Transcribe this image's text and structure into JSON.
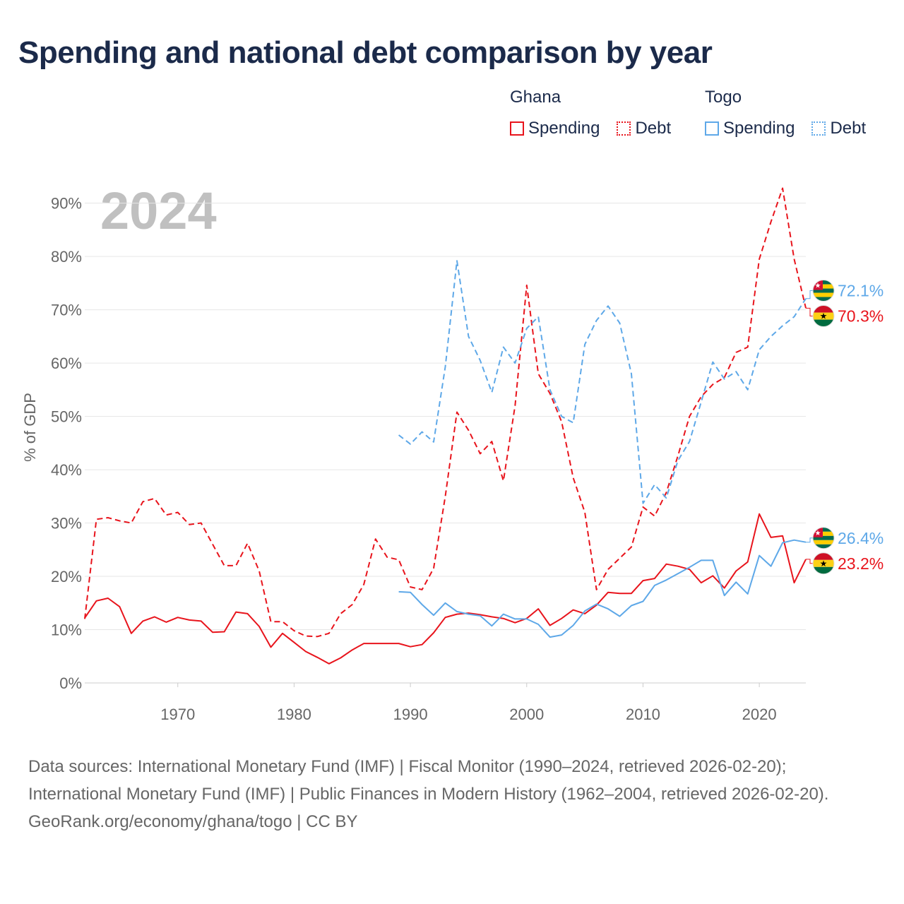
{
  "title": "Spending and national debt comparison by year",
  "legend": {
    "groups": [
      {
        "name": "Ghana",
        "items": [
          {
            "label": "Spending",
            "style": "solid",
            "color": "#e8141c"
          },
          {
            "label": "Debt",
            "style": "dotted",
            "color": "#e8141c"
          }
        ]
      },
      {
        "name": "Togo",
        "items": [
          {
            "label": "Spending",
            "style": "solid",
            "color": "#5ea8e8"
          },
          {
            "label": "Debt",
            "style": "dotted",
            "color": "#5ea8e8"
          }
        ]
      }
    ]
  },
  "colors": {
    "ghana": "#e8141c",
    "togo": "#5ea8e8",
    "title": "#1b2a4a",
    "year_watermark": "#c0c0c0"
  },
  "chart_data": {
    "type": "line",
    "year_label": "2024",
    "ylabel": "% of GDP",
    "xlim": [
      1962,
      2024
    ],
    "ylim": [
      0,
      93
    ],
    "x_ticks": [
      1970,
      1980,
      1990,
      2000,
      2010,
      2020
    ],
    "y_ticks": [
      {
        "value": 0,
        "label": "0%"
      },
      {
        "value": 10,
        "label": "10%"
      },
      {
        "value": 20,
        "label": "20%"
      },
      {
        "value": 30,
        "label": "30%"
      },
      {
        "value": 40,
        "label": "40%"
      },
      {
        "value": 50,
        "label": "50%"
      },
      {
        "value": 60,
        "label": "60%"
      },
      {
        "value": 70,
        "label": "70%"
      },
      {
        "value": 80,
        "label": "80%"
      },
      {
        "value": 90,
        "label": "90%"
      }
    ],
    "series": [
      {
        "name": "Ghana Spending",
        "country": "Ghana",
        "metric": "Spending",
        "dash": "solid",
        "color": "#e8141c",
        "start": 1962,
        "end_label": "23.2%",
        "values": [
          12.2,
          15.4,
          15.9,
          14.3,
          9.3,
          11.6,
          12.4,
          11.4,
          12.3,
          11.8,
          11.6,
          9.5,
          9.6,
          13.3,
          13.0,
          10.6,
          6.7,
          9.3,
          7.6,
          5.9,
          4.8,
          3.6,
          4.7,
          6.2,
          7.4,
          7.4,
          7.4,
          7.4,
          6.8,
          7.2,
          9.4,
          12.3,
          12.9,
          13.1,
          12.8,
          12.4,
          12.1,
          11.3,
          12.1,
          13.9,
          10.8,
          12.1,
          13.7,
          13.0,
          14.6,
          17.0,
          16.8,
          16.8,
          19.2,
          19.6,
          22.3,
          21.9,
          21.3,
          18.8,
          20.1,
          17.8,
          21.0,
          22.7,
          31.7,
          27.3,
          27.6,
          18.8,
          23.2
        ]
      },
      {
        "name": "Ghana Debt",
        "country": "Ghana",
        "metric": "Debt",
        "dash": "dashed",
        "color": "#e8141c",
        "start": 1962,
        "end_label": "70.3%",
        "values": [
          12.0,
          30.7,
          31.0,
          30.4,
          30.0,
          34.0,
          34.6,
          31.5,
          32.0,
          29.7,
          30.0,
          26.0,
          22.0,
          22.0,
          26.2,
          21.0,
          11.5,
          11.5,
          9.8,
          8.8,
          8.7,
          9.3,
          13.0,
          14.7,
          18.5,
          27.0,
          23.6,
          23.1,
          18.0,
          17.5,
          21.5,
          35.0,
          50.8,
          47.4,
          43.0,
          45.3,
          37.9,
          52.0,
          74.6,
          58.0,
          54.3,
          49.0,
          38.5,
          32.0,
          17.5,
          21.3,
          23.4,
          25.5,
          33.0,
          31.3,
          35.7,
          42.6,
          50.0,
          53.7,
          56.0,
          57.3,
          62.0,
          63.0,
          79.5,
          86.5,
          92.8,
          79.5,
          70.3
        ]
      },
      {
        "name": "Togo Spending",
        "country": "Togo",
        "metric": "Spending",
        "dash": "solid",
        "color": "#5ea8e8",
        "start": 1989,
        "end_label": "26.4%",
        "values": [
          17.1,
          17.0,
          14.7,
          12.7,
          15.0,
          13.4,
          12.9,
          12.6,
          10.7,
          12.9,
          12.0,
          12.0,
          11.0,
          8.6,
          9.0,
          10.8,
          13.5,
          14.8,
          13.9,
          12.5,
          14.5,
          15.3,
          18.3,
          19.3,
          20.5,
          21.7,
          23.0,
          23.0,
          16.4,
          18.9,
          16.7,
          23.9,
          21.9,
          26.3,
          26.8,
          26.4
        ]
      },
      {
        "name": "Togo Debt",
        "country": "Togo",
        "metric": "Debt",
        "dash": "dashed",
        "color": "#5ea8e8",
        "start": 1989,
        "end_label": "72.1%",
        "values": [
          46.5,
          44.8,
          47.1,
          45.2,
          59.3,
          79.2,
          65.0,
          60.5,
          54.5,
          63.0,
          60.0,
          66.5,
          68.7,
          55.0,
          50.0,
          48.8,
          63.5,
          68.0,
          70.7,
          67.5,
          58.0,
          33.7,
          37.2,
          34.7,
          41.7,
          45.3,
          52.7,
          60.2,
          57.0,
          58.4,
          55.0,
          62.5,
          65.0,
          67.0,
          68.7,
          72.1
        ]
      }
    ]
  },
  "footer": {
    "sources": "Data sources: International Monetary Fund (IMF) | Fiscal Monitor (1990–2024, retrieved 2026-02-20); International Monetary Fund (IMF) | Public Finances in Modern History (1962–2004, retrieved 2026-02-20).",
    "credit": "GeoRank.org/economy/ghana/togo | CC BY"
  }
}
